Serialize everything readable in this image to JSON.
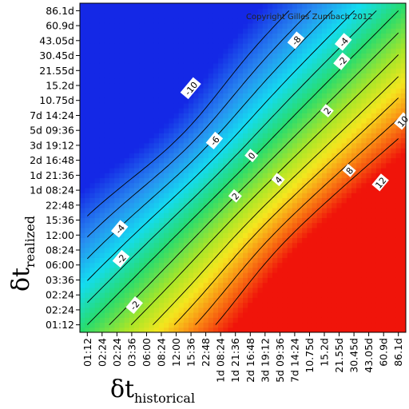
{
  "chart_data": {
    "type": "heatmap",
    "copyright": "Copyright Gilles Zumbach 2012",
    "xlabel_main": "δt",
    "xlabel_sub": "historical",
    "ylabel_main": "δt",
    "ylabel_sub": "realized",
    "x_ticks": [
      "01:12",
      "02:24",
      "02:24",
      "03:36",
      "06:00",
      "08:24",
      "12:00",
      "15:36",
      "22:48",
      "1d 08:24",
      "1d 21:36",
      "2d 16:48",
      "3d 19:12",
      "5d 09:36",
      "7d 14:24",
      "10.75d",
      "15.2d",
      "21.55d",
      "30.45d",
      "43.05d",
      "60.9d",
      "86.1d"
    ],
    "y_ticks": [
      "86.1d",
      "60.9d",
      "43.05d",
      "30.45d",
      "21.55d",
      "15.2d",
      "10.75d",
      "7d 14:24",
      "5d 09:36",
      "3d 19:12",
      "2d 16:48",
      "1d 21:36",
      "1d 08:24",
      "22:48",
      "15:36",
      "12:00",
      "08:24",
      "06:00",
      "03:36",
      "02:24",
      "02:24",
      "01:12"
    ],
    "contour_levels": [
      -10,
      -8,
      -6,
      -4,
      -2,
      0,
      2,
      4,
      6,
      8,
      10,
      12
    ],
    "contour_labels": [
      {
        "text": "-10",
        "ix": 7.0,
        "iy": 15.8
      },
      {
        "text": "-8",
        "ix": 14.1,
        "iy": 19.0
      },
      {
        "text": "-6",
        "ix": 8.6,
        "iy": 12.3
      },
      {
        "text": "-4",
        "ix": 2.2,
        "iy": 6.4
      },
      {
        "text": "-2",
        "ix": 2.3,
        "iy": 4.4
      },
      {
        "text": "-2",
        "ix": 3.2,
        "iy": 1.3
      },
      {
        "text": "-4",
        "ix": 17.3,
        "iy": 18.9
      },
      {
        "text": "-2",
        "ix": 17.2,
        "iy": 17.6
      },
      {
        "text": "2",
        "ix": 16.2,
        "iy": 14.3
      },
      {
        "text": "0",
        "ix": 11.1,
        "iy": 11.3
      },
      {
        "text": "2",
        "ix": 10.0,
        "iy": 8.6
      },
      {
        "text": "4",
        "ix": 12.9,
        "iy": 9.7
      },
      {
        "text": "8",
        "ix": 17.7,
        "iy": 10.3
      },
      {
        "text": "10",
        "ix": 21.3,
        "iy": 13.6
      },
      {
        "text": "12",
        "ix": 19.8,
        "iy": 9.5
      }
    ]
  }
}
